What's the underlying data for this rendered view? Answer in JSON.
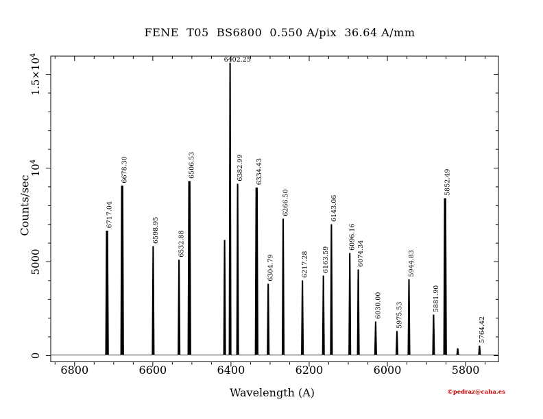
{
  "page": {
    "background": "#ffffff"
  },
  "header": {
    "title": "FENE  T05  BS6800  0.550 A/pix  36.64 A/mm"
  },
  "footer": {
    "credit": "©pedraz@caha.es",
    "credit_color": "#cc0000"
  },
  "chart_data": {
    "type": "line",
    "title": "FENE  T05  BS6800  0.550 A/pix  36.64 A/mm",
    "subtitle": "",
    "xlabel": "Wavelength (A)",
    "ylabel": "Counts/sec",
    "x_reversed": true,
    "xlim": [
      6861,
      5716
    ],
    "ylim": [
      -330,
      15970
    ],
    "x_major_ticks": [
      6800,
      6600,
      6400,
      6200,
      6000,
      5800
    ],
    "x_major_tick_labels": [
      "6800",
      "6600",
      "6400",
      "6200",
      "6000",
      "5800"
    ],
    "x_minor_tick_step": 50,
    "y_major_ticks": [
      0,
      5000,
      10000,
      15000
    ],
    "y_major_tick_labels": [
      "0",
      "5000",
      "10^4",
      "1.5×10^4"
    ],
    "y_minor_tick_step": 1000,
    "grid": false,
    "legend": "none",
    "line_color": "#000000",
    "baseline_counts": 40,
    "peaks": [
      {
        "wavelength": 6717.04,
        "counts": 6650,
        "label": "6717.04",
        "label_style": "vertical",
        "thick": true
      },
      {
        "wavelength": 6678.3,
        "counts": 9050,
        "label": "6678.30",
        "label_style": "vertical",
        "thick": true
      },
      {
        "wavelength": 6598.95,
        "counts": 5820,
        "label": "6598.95",
        "label_style": "vertical",
        "thick": false
      },
      {
        "wavelength": 6532.88,
        "counts": 5100,
        "label": "6532.88",
        "label_style": "vertical",
        "thick": false
      },
      {
        "wavelength": 6506.53,
        "counts": 9290,
        "label": "6506.53",
        "label_style": "vertical",
        "thick": true
      },
      {
        "wavelength": 6416.3,
        "counts": 6150,
        "label": "",
        "label_style": "none",
        "thick": false
      },
      {
        "wavelength": 6402.25,
        "counts": 15600,
        "label": "6402.25",
        "label_style": "horizontal",
        "thick": false
      },
      {
        "wavelength": 6382.99,
        "counts": 9150,
        "label": "6382.99",
        "label_style": "vertical",
        "thick": false
      },
      {
        "wavelength": 6334.43,
        "counts": 8950,
        "label": "6334.43",
        "label_style": "vertical",
        "thick": true
      },
      {
        "wavelength": 6304.79,
        "counts": 3820,
        "label": "6304.79",
        "label_style": "vertical",
        "thick": false
      },
      {
        "wavelength": 6266.5,
        "counts": 7290,
        "label": "6266.50",
        "label_style": "vertical",
        "thick": false
      },
      {
        "wavelength": 6217.28,
        "counts": 4000,
        "label": "6217.28",
        "label_style": "vertical",
        "thick": false
      },
      {
        "wavelength": 6163.59,
        "counts": 4250,
        "label": "6163.59",
        "label_style": "vertical",
        "thick": false
      },
      {
        "wavelength": 6143.06,
        "counts": 6990,
        "label": "6143.06",
        "label_style": "vertical",
        "thick": false
      },
      {
        "wavelength": 6096.16,
        "counts": 5460,
        "label": "6096.16",
        "label_style": "vertical",
        "thick": false
      },
      {
        "wavelength": 6074.34,
        "counts": 4580,
        "label": "6074.34",
        "label_style": "vertical",
        "thick": false
      },
      {
        "wavelength": 6030.0,
        "counts": 1810,
        "label": "6030.00",
        "label_style": "vertical",
        "thick": false
      },
      {
        "wavelength": 5975.53,
        "counts": 1300,
        "label": "5975.53",
        "label_style": "vertical",
        "thick": false
      },
      {
        "wavelength": 5944.83,
        "counts": 4050,
        "label": "5944.83",
        "label_style": "vertical",
        "thick": false
      },
      {
        "wavelength": 5881.9,
        "counts": 2170,
        "label": "5881.90",
        "label_style": "vertical",
        "thick": false
      },
      {
        "wavelength": 5852.49,
        "counts": 8380,
        "label": "5852.49",
        "label_style": "vertical",
        "thick": true
      },
      {
        "wavelength": 5820.2,
        "counts": 380,
        "label": "",
        "label_style": "none",
        "thick": false
      },
      {
        "wavelength": 5764.42,
        "counts": 520,
        "label": "5764.42",
        "label_style": "vertical",
        "thick": false
      }
    ]
  }
}
